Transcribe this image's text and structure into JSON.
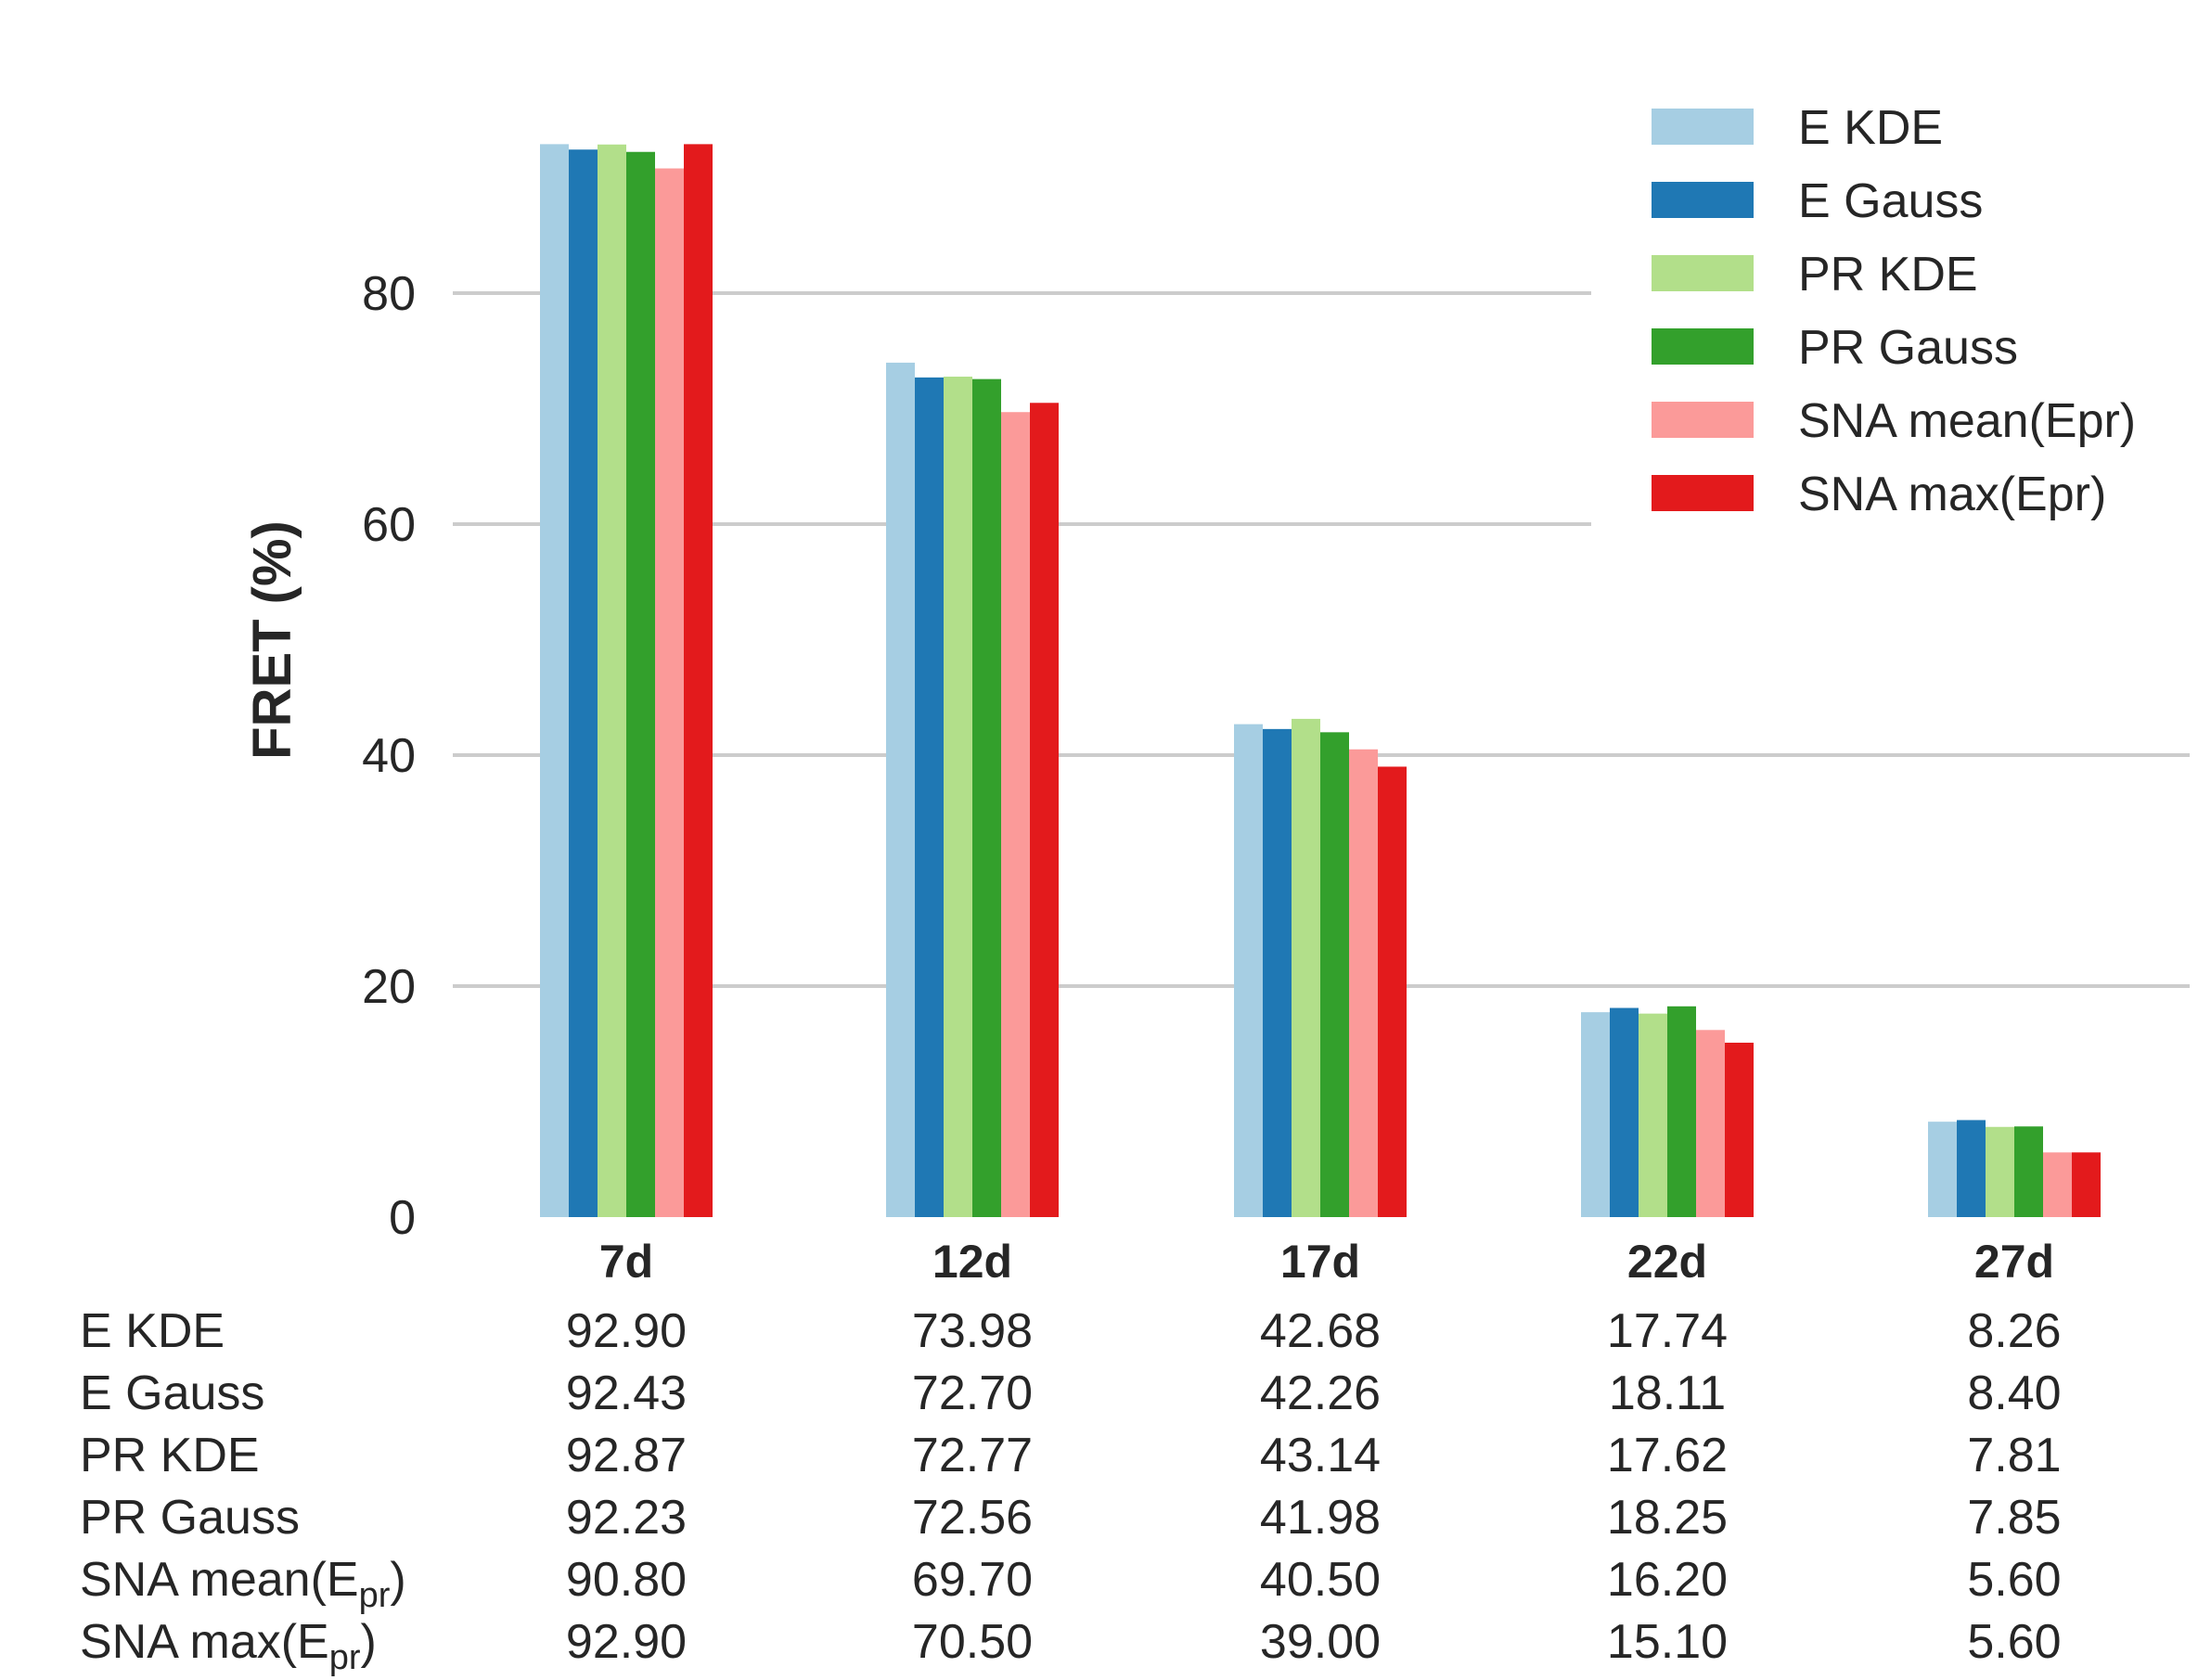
{
  "chart_data": {
    "type": "bar",
    "ylabel": "FRET (%)",
    "xlabel": "",
    "ylim": [
      0,
      95
    ],
    "yticks": [
      0,
      20,
      40,
      60,
      80
    ],
    "grid": true,
    "legend_position": "top-right",
    "categories": [
      "7d",
      "12d",
      "17d",
      "22d",
      "27d"
    ],
    "series": [
      {
        "name": "E KDE",
        "color": "#a6cee3",
        "values": [
          92.9,
          73.98,
          42.68,
          17.74,
          8.26
        ]
      },
      {
        "name": "E Gauss",
        "color": "#1f78b4",
        "values": [
          92.43,
          72.7,
          42.26,
          18.11,
          8.4
        ]
      },
      {
        "name": "PR KDE",
        "color": "#b2df8a",
        "values": [
          92.87,
          72.77,
          43.14,
          17.62,
          7.81
        ]
      },
      {
        "name": "PR Gauss",
        "color": "#33a02c",
        "values": [
          92.23,
          72.56,
          41.98,
          18.25,
          7.85
        ]
      },
      {
        "name": "SNA mean(Epr)",
        "color": "#fb9a99",
        "values": [
          90.8,
          69.7,
          40.5,
          16.2,
          5.6
        ]
      },
      {
        "name": "SNA max(Epr)",
        "color": "#e31a1c",
        "values": [
          92.9,
          70.5,
          39.0,
          15.1,
          5.6
        ]
      }
    ],
    "table": {
      "rows": [
        {
          "label": "E KDE",
          "label_base": "E KDE",
          "label_sub": "",
          "label_tail": "",
          "cells": [
            "92.90",
            "73.98",
            "42.68",
            "17.74",
            "8.26"
          ]
        },
        {
          "label": "E Gauss",
          "label_base": "E Gauss",
          "label_sub": "",
          "label_tail": "",
          "cells": [
            "92.43",
            "72.70",
            "42.26",
            "18.11",
            "8.40"
          ]
        },
        {
          "label": "PR KDE",
          "label_base": "PR KDE",
          "label_sub": "",
          "label_tail": "",
          "cells": [
            "92.87",
            "72.77",
            "43.14",
            "17.62",
            "7.81"
          ]
        },
        {
          "label": "PR Gauss",
          "label_base": "PR Gauss",
          "label_sub": "",
          "label_tail": "",
          "cells": [
            "92.23",
            "72.56",
            "41.98",
            "18.25",
            "7.85"
          ]
        },
        {
          "label": "SNA mean(Epr)",
          "label_base": "SNA mean(E",
          "label_sub": "pr",
          "label_tail": ")",
          "cells": [
            "90.80",
            "69.70",
            "40.50",
            "16.20",
            "5.60"
          ]
        },
        {
          "label": "SNA max(Epr)",
          "label_base": "SNA max(E",
          "label_sub": "pr",
          "label_tail": ")",
          "cells": [
            "92.90",
            "70.50",
            "39.00",
            "15.10",
            "5.60"
          ]
        }
      ]
    }
  }
}
